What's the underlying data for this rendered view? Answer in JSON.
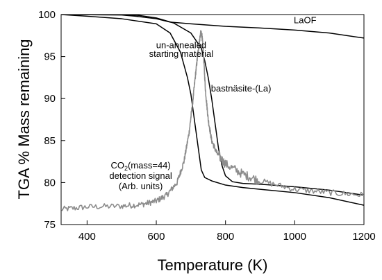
{
  "chart_data": {
    "type": "line",
    "xlabel": "Temperature (K)",
    "ylabel": "TGA % Mass remaining",
    "xlim": [
      325,
      1200
    ],
    "ylim": [
      75,
      100
    ],
    "x_ticks": [
      400,
      600,
      800,
      1000,
      1200
    ],
    "y_ticks": [
      75,
      80,
      85,
      90,
      95,
      100
    ],
    "grid": false,
    "legend": "none",
    "series": [
      {
        "name": "LaOF",
        "color": "#000000",
        "x": [
          325,
          500,
          540,
          600,
          640,
          700,
          800,
          900,
          1000,
          1100,
          1200
        ],
        "y": [
          100,
          99.95,
          99.8,
          99.5,
          99.1,
          98.9,
          98.6,
          98.4,
          98.15,
          97.8,
          97.2
        ]
      },
      {
        "name": "un-annealed starting material",
        "color": "#000000",
        "x": [
          325,
          400,
          500,
          600,
          640,
          670,
          690,
          700,
          710,
          720,
          730,
          740,
          760,
          800,
          850,
          900,
          1000,
          1100,
          1200
        ],
        "y": [
          100,
          99.8,
          99.5,
          98.9,
          97.8,
          95.5,
          92.5,
          90.5,
          87.5,
          84.5,
          81.5,
          80.6,
          80.2,
          79.7,
          79.4,
          79.2,
          78.8,
          78.2,
          77.3
        ]
      },
      {
        "name": "bastnäsite-(La)",
        "color": "#000000",
        "x": [
          325,
          500,
          550,
          600,
          650,
          700,
          730,
          740,
          750,
          760,
          770,
          780,
          790,
          800,
          820,
          850,
          900,
          1000,
          1100,
          1200
        ],
        "y": [
          100,
          100,
          99.9,
          99.6,
          99,
          97.8,
          96,
          94.5,
          92.5,
          90,
          87,
          84,
          82,
          80.8,
          80.1,
          79.9,
          79.8,
          79.5,
          79.1,
          78.5
        ]
      },
      {
        "name": "CO2(mass=44) detection signal (Arb. units)",
        "color": "#8c8c8c",
        "x": [
          325,
          400,
          500,
          560,
          600,
          630,
          660,
          680,
          695,
          705,
          715,
          722,
          728,
          732,
          736,
          742,
          750,
          760,
          775,
          800,
          850,
          900,
          1000,
          1100,
          1200
        ],
        "y": [
          76.8,
          77.1,
          77.2,
          77.4,
          77.8,
          78.5,
          80,
          82.5,
          86,
          89.5,
          93.5,
          96,
          97.8,
          97.5,
          95.5,
          91,
          87.5,
          85,
          83.5,
          82.2,
          81,
          80.2,
          79.2,
          78.8,
          78.5
        ]
      }
    ],
    "annotations": [
      {
        "text": "LaOF",
        "x": 1030,
        "y": 98.95
      },
      {
        "text": "un-annealed",
        "x": 672,
        "y": 96.0
      },
      {
        "text": "starting material",
        "x": 672,
        "y": 94.95
      },
      {
        "text": "bastnäsite-(La)",
        "x": 845,
        "y": 90.85
      }
    ],
    "co2_label": {
      "prefix": "CO",
      "subscript": "2",
      "suffix": "(mass=44)",
      "line2": "detection signal",
      "line3": "(Arb. units)",
      "x": 555,
      "y": 81.7
    }
  }
}
